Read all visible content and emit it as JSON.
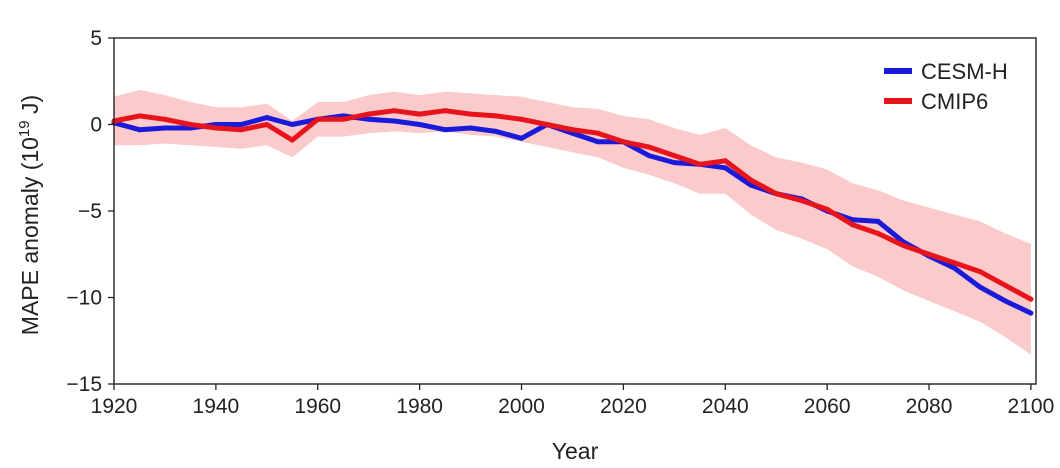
{
  "chart_data": {
    "type": "line",
    "xlabel": "Year",
    "ylabel": "MAPE anomaly (10",
    "ylabel_exponent": "19",
    "ylabel_unit": " J)",
    "xlim": [
      1920,
      2101
    ],
    "ylim": [
      -15,
      5
    ],
    "x_ticks": [
      {
        "value": 1920,
        "label": "1920"
      },
      {
        "value": 1940,
        "label": "1940"
      },
      {
        "value": 1960,
        "label": "1960"
      },
      {
        "value": 1980,
        "label": "1980"
      },
      {
        "value": 2000,
        "label": "2000"
      },
      {
        "value": 2020,
        "label": "2020"
      },
      {
        "value": 2040,
        "label": "2040"
      },
      {
        "value": 2060,
        "label": "2060"
      },
      {
        "value": 2080,
        "label": "2080"
      },
      {
        "value": 2100,
        "label": "2100"
      }
    ],
    "y_ticks": [
      {
        "value": 5,
        "label": "5"
      },
      {
        "value": 0,
        "label": "0"
      },
      {
        "value": -5,
        "label": "−5"
      },
      {
        "value": -10,
        "label": "−10"
      },
      {
        "value": -15,
        "label": "−15"
      }
    ],
    "legend_position": "top-right",
    "grid": false,
    "x": [
      1920,
      1925,
      1930,
      1935,
      1940,
      1945,
      1950,
      1955,
      1960,
      1965,
      1970,
      1975,
      1980,
      1985,
      1990,
      1995,
      2000,
      2005,
      2010,
      2015,
      2020,
      2025,
      2030,
      2035,
      2040,
      2045,
      2050,
      2055,
      2060,
      2065,
      2070,
      2075,
      2080,
      2085,
      2090,
      2095,
      2100
    ],
    "series": [
      {
        "name": "CESM-H",
        "color": "#1a1adb",
        "values": [
          0.1,
          -0.3,
          -0.2,
          -0.2,
          0.0,
          0.0,
          0.4,
          0.0,
          0.3,
          0.5,
          0.3,
          0.2,
          0.0,
          -0.3,
          -0.2,
          -0.4,
          -0.8,
          0.0,
          -0.5,
          -1.0,
          -1.0,
          -1.8,
          -2.2,
          -2.3,
          -2.5,
          -3.5,
          -4.0,
          -4.3,
          -5.0,
          -5.5,
          -5.6,
          -6.8,
          -7.6,
          -8.3,
          -9.4,
          -10.2,
          -10.9
        ]
      },
      {
        "name": "CMIP6",
        "color": "#e8141c",
        "values": [
          0.2,
          0.5,
          0.3,
          0.0,
          -0.2,
          -0.3,
          0.0,
          -0.9,
          0.3,
          0.3,
          0.6,
          0.8,
          0.6,
          0.8,
          0.6,
          0.5,
          0.3,
          0.0,
          -0.3,
          -0.5,
          -1.0,
          -1.3,
          -1.8,
          -2.3,
          -2.1,
          -3.2,
          -4.0,
          -4.4,
          -4.9,
          -5.8,
          -6.3,
          -7.0,
          -7.5,
          -8.0,
          -8.5,
          -9.3,
          -10.1
        ]
      }
    ],
    "band": {
      "series": "CMIP6",
      "color": "#fbcaca",
      "lower": [
        -1.2,
        -1.2,
        -1.1,
        -1.2,
        -1.3,
        -1.4,
        -1.2,
        -1.9,
        -0.7,
        -0.7,
        -0.5,
        -0.4,
        -0.5,
        -0.4,
        -0.6,
        -0.7,
        -1.0,
        -1.3,
        -1.6,
        -1.9,
        -2.5,
        -2.9,
        -3.4,
        -4.0,
        -4.0,
        -5.2,
        -6.1,
        -6.6,
        -7.2,
        -8.2,
        -8.8,
        -9.6,
        -10.2,
        -10.8,
        -11.4,
        -12.3,
        -13.3
      ],
      "upper": [
        1.6,
        2.0,
        1.7,
        1.3,
        1.0,
        1.0,
        1.2,
        0.2,
        1.3,
        1.3,
        1.7,
        1.9,
        1.7,
        1.9,
        1.8,
        1.7,
        1.6,
        1.3,
        1.0,
        0.9,
        0.5,
        0.3,
        -0.2,
        -0.6,
        -0.2,
        -1.2,
        -1.9,
        -2.2,
        -2.6,
        -3.4,
        -3.8,
        -4.4,
        -4.8,
        -5.2,
        -5.6,
        -6.3,
        -6.9
      ]
    }
  }
}
